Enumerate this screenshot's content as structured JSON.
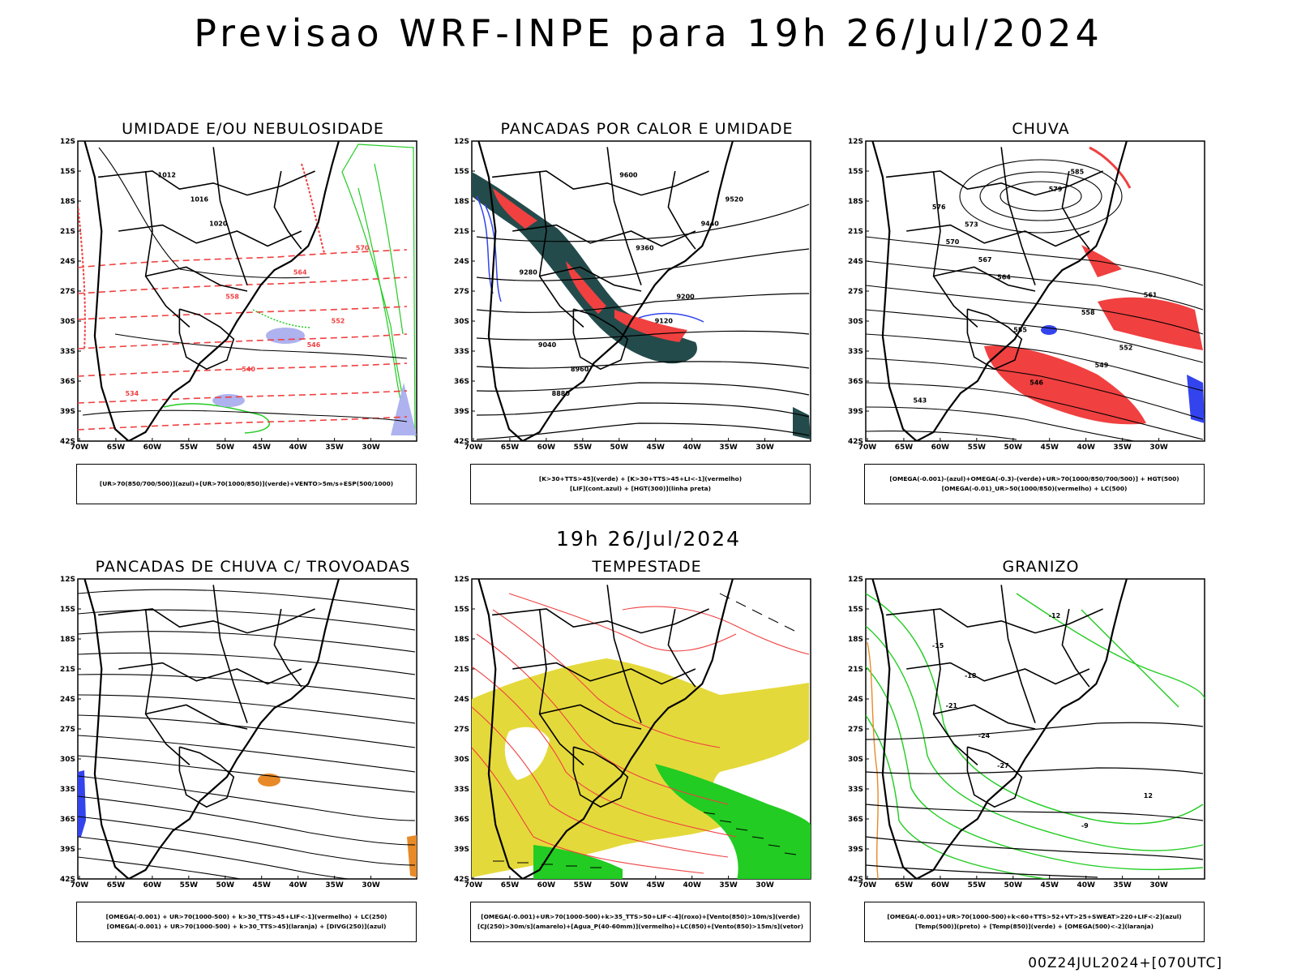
{
  "header": {
    "title": "Previsao WRF-INPE  para 19h 26/Jul/2024"
  },
  "middle": {
    "title": "19h 26/Jul/2024"
  },
  "footer": {
    "run": "00Z24JUL2024+[070UTC]"
  },
  "axes": {
    "lat_labels": [
      "12S",
      "15S",
      "18S",
      "21S",
      "24S",
      "27S",
      "30S",
      "33S",
      "36S",
      "39S",
      "42S"
    ],
    "lon_labels": [
      "70W",
      "65W",
      "60W",
      "55W",
      "50W",
      "45W",
      "40W",
      "35W",
      "30W"
    ]
  },
  "colors": {
    "red": "#f04040",
    "green": "#22cc22",
    "blue": "#3344ee",
    "yellow": "#e4d93a",
    "teal": "#244b4b",
    "orange": "#e88a28",
    "lavender": "#aeb2ee"
  },
  "panels": [
    {
      "id": "umidade",
      "title": "UMIDADE E/OU NEBULOSIDADE",
      "legend": [
        "[UR>70(850/700/500)](azul)+[UR>70(1000/850)](verde)+VENTO>5m/s+ESP(500/1000)"
      ],
      "contour_labels": [
        "1012",
        "1016",
        "1020",
        "570",
        "564",
        "558",
        "552",
        "546",
        "540",
        "534"
      ]
    },
    {
      "id": "pancadas-calor",
      "title": "PANCADAS POR CALOR E UMIDADE",
      "legend": [
        "[K>30+TTS>45](verde) + [K>30+TTS>45+LI<-1](vermelho)",
        "[LIF](cont.azul) + [HGT(300)](linha preta)"
      ],
      "contour_labels": [
        "9600",
        "9520",
        "9440",
        "9360",
        "9280",
        "9200",
        "9120",
        "9040",
        "8960",
        "8880"
      ]
    },
    {
      "id": "chuva",
      "title": "CHUVA",
      "legend": [
        "[OMEGA(-0.001)-(azul)+OMEGA(-0.3)-(verde)+UR>70(1000/850/700/500)] + HGT(500)",
        "[OMEGA(-0.01)_UR>50(1000/850)(vermelho) + LC(500)"
      ],
      "contour_labels": [
        "585",
        "579",
        "576",
        "573",
        "570",
        "567",
        "564",
        "561",
        "558",
        "555",
        "552",
        "549",
        "546",
        "543"
      ]
    },
    {
      "id": "pancadas-trovoadas",
      "title": "PANCADAS DE CHUVA C/ TROVOADAS",
      "legend": [
        "[OMEGA(-0.001) + UR>70(1000-500) + k>30_TTS>45+LIF<-1](vermelho) + LC(250)",
        "[OMEGA(-0.001) + UR>70(1000-500) + k>30_TTS>45](laranja) + [DIVG(250)](azul)"
      ],
      "contour_labels": []
    },
    {
      "id": "tempestade",
      "title": "TEMPESTADE",
      "legend": [
        "[OMEGA(-0.001)+UR>70(1000-500)+k>35_TTS>50+LIF<-4](roxo)+[Vento(850)>10m/s](verde)",
        "[CJ(250)>30m/s](amarelo)+[Agua_P(40-60mm)](vermelho)+LC(850)+[Vento(850)>15m/s](vetor)"
      ],
      "contour_labels": []
    },
    {
      "id": "granizo",
      "title": "GRANIZO",
      "legend": [
        "[OMEGA(-0.001)+UR>70(1000-500)+k<60+TTS>52+VT>25+SWEAT>220+LIF<-2](azul)",
        "[Temp(500)](preto) + [Temp(850)](verde) + [OMEGA(500)<-2](laranja)"
      ],
      "contour_labels": [
        "-12",
        "-15",
        "-18",
        "-21",
        "-24",
        "-27",
        "12",
        "-9"
      ]
    }
  ]
}
